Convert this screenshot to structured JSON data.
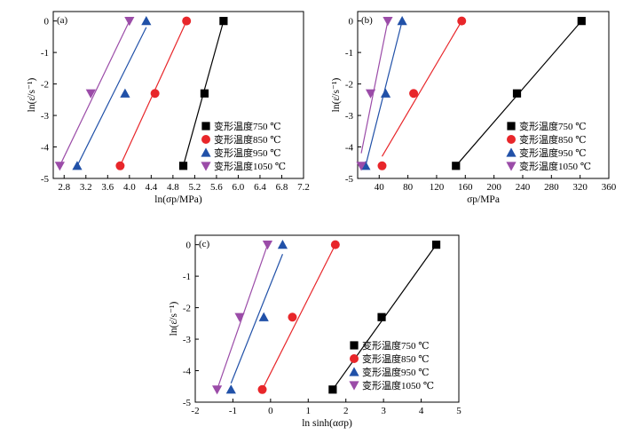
{
  "colors": {
    "750": "#000000",
    "850": "#e8262a",
    "950": "#2151a8",
    "1050": "#9b4ca8",
    "axis": "#000000"
  },
  "chart_data": [
    {
      "type": "scatter",
      "panel_label": "(a)",
      "xlabel": "ln(σp/MPa)",
      "ylabel": "ln(ε̇/s⁻¹)",
      "xlim": [
        2.6,
        7.2
      ],
      "ylim": [
        -5,
        0.3
      ],
      "xticks": [
        2.8,
        3.2,
        3.6,
        4.0,
        4.4,
        4.8,
        5.2,
        5.6,
        6.0,
        6.4,
        6.8,
        7.2
      ],
      "xtick_labels": [
        "2.8",
        "3.2",
        "3.6",
        "4.0",
        "4.4",
        "4.8",
        "5.2",
        "5.6",
        "6.0",
        "6.4",
        "6.8",
        "7.2"
      ],
      "yticks": [
        -5,
        -4,
        -3,
        -2,
        -1,
        0
      ],
      "ytick_labels": [
        "-5",
        "-4",
        "-3",
        "-2",
        "-1",
        "0"
      ],
      "legend_position": "lower-right",
      "series": [
        {
          "name": "变形温度750 ℃",
          "marker": "square",
          "color": "#000000",
          "x": [
            4.99,
            5.38,
            5.73
          ],
          "y": [
            -4.6,
            -2.3,
            0.0
          ],
          "fit": [
            [
              4.99,
              -4.6
            ],
            [
              5.73,
              0.0
            ]
          ]
        },
        {
          "name": "变形温度850 ℃",
          "marker": "circle",
          "color": "#e8262a",
          "x": [
            3.83,
            4.47,
            5.05
          ],
          "y": [
            -4.6,
            -2.3,
            0.0
          ],
          "fit": [
            [
              3.83,
              -4.6
            ],
            [
              5.05,
              0.0
            ]
          ]
        },
        {
          "name": "变形温度950 ℃",
          "marker": "triangle-up",
          "color": "#2151a8",
          "x": [
            3.04,
            3.92,
            4.31
          ],
          "y": [
            -4.6,
            -2.3,
            0.0
          ],
          "fit": [
            [
              3.04,
              -4.6
            ],
            [
              4.31,
              -0.2
            ]
          ]
        },
        {
          "name": "变形温度1050 ℃",
          "marker": "triangle-down",
          "color": "#9b4ca8",
          "x": [
            2.72,
            3.29,
            4.0
          ],
          "y": [
            -4.6,
            -2.3,
            0.0
          ],
          "fit": [
            [
              2.72,
              -4.6
            ],
            [
              4.0,
              0.0
            ]
          ]
        }
      ]
    },
    {
      "type": "scatter",
      "panel_label": "(b)",
      "xlabel": "σp/MPa",
      "ylabel": "ln(ε̇/s⁻¹)",
      "xlim": [
        10,
        360
      ],
      "ylim": [
        -5,
        0.3
      ],
      "xticks": [
        40,
        80,
        120,
        160,
        200,
        240,
        280,
        320,
        360
      ],
      "xtick_labels": [
        "40",
        "80",
        "120",
        "160",
        "200",
        "240",
        "280",
        "320",
        "360"
      ],
      "yticks": [
        -5,
        -4,
        -3,
        -2,
        -1,
        0
      ],
      "ytick_labels": [
        "-5",
        "-4",
        "-3",
        "-2",
        "-1",
        "0"
      ],
      "legend_position": "lower-right",
      "series": [
        {
          "name": "变形温度750 ℃",
          "marker": "square",
          "color": "#000000",
          "x": [
            147,
            232,
            322
          ],
          "y": [
            -4.6,
            -2.3,
            0.0
          ],
          "fit": [
            [
              147,
              -4.6
            ],
            [
              322,
              0.0
            ]
          ]
        },
        {
          "name": "变形温度850 ℃",
          "marker": "circle",
          "color": "#e8262a",
          "x": [
            44,
            88,
            155
          ],
          "y": [
            -4.6,
            -2.3,
            0.0
          ],
          "fit": [
            [
              44,
              -4.3
            ],
            [
              155,
              0.0
            ]
          ]
        },
        {
          "name": "变形温度950 ℃",
          "marker": "triangle-up",
          "color": "#2151a8",
          "x": [
            21,
            49,
            72
          ],
          "y": [
            -4.6,
            -2.3,
            0.0
          ],
          "fit": [
            [
              21,
              -4.6
            ],
            [
              72,
              0.0
            ]
          ]
        },
        {
          "name": "变形温度1050 ℃",
          "marker": "triangle-down",
          "color": "#9b4ca8",
          "x": [
            15,
            28,
            52
          ],
          "y": [
            -4.6,
            -2.3,
            0.0
          ],
          "fit": [
            [
              15,
              -4.2
            ],
            [
              52,
              0.0
            ]
          ]
        }
      ]
    },
    {
      "type": "scatter",
      "panel_label": "(c)",
      "xlabel": "ln sinh(ασp)",
      "ylabel": "ln(ε̇/s⁻¹)",
      "xlim": [
        -2,
        5
      ],
      "ylim": [
        -5,
        0.3
      ],
      "xticks": [
        -2,
        -1,
        0,
        1,
        2,
        3,
        4,
        5
      ],
      "xtick_labels": [
        "-2",
        "-1",
        "0",
        "1",
        "2",
        "3",
        "4",
        "5"
      ],
      "yticks": [
        -5,
        -4,
        -3,
        -2,
        -1,
        0
      ],
      "ytick_labels": [
        "-5",
        "-4",
        "-3",
        "-2",
        "-1",
        "0"
      ],
      "legend_position": "lower-right",
      "series": [
        {
          "name": "变形温度750 ℃",
          "marker": "square",
          "color": "#000000",
          "x": [
            1.65,
            2.95,
            4.4
          ],
          "y": [
            -4.6,
            -2.3,
            0.0
          ],
          "fit": [
            [
              1.65,
              -4.6
            ],
            [
              4.4,
              0.0
            ]
          ]
        },
        {
          "name": "变形温度850 ℃",
          "marker": "circle",
          "color": "#e8262a",
          "x": [
            -0.22,
            0.58,
            1.72
          ],
          "y": [
            -4.6,
            -2.3,
            0.0
          ],
          "fit": [
            [
              -0.22,
              -4.6
            ],
            [
              1.72,
              0.0
            ]
          ]
        },
        {
          "name": "变形温度950 ℃",
          "marker": "triangle-up",
          "color": "#2151a8",
          "x": [
            -1.05,
            -0.18,
            0.32
          ],
          "y": [
            -4.6,
            -2.3,
            0.0
          ],
          "fit": [
            [
              -1.05,
              -4.4
            ],
            [
              0.32,
              -0.3
            ]
          ]
        },
        {
          "name": "变形温度1050 ℃",
          "marker": "triangle-down",
          "color": "#9b4ca8",
          "x": [
            -1.42,
            -0.82,
            -0.08
          ],
          "y": [
            -4.6,
            -2.3,
            0.0
          ],
          "fit": [
            [
              -1.42,
              -4.6
            ],
            [
              -0.08,
              0.0
            ]
          ]
        }
      ]
    }
  ]
}
